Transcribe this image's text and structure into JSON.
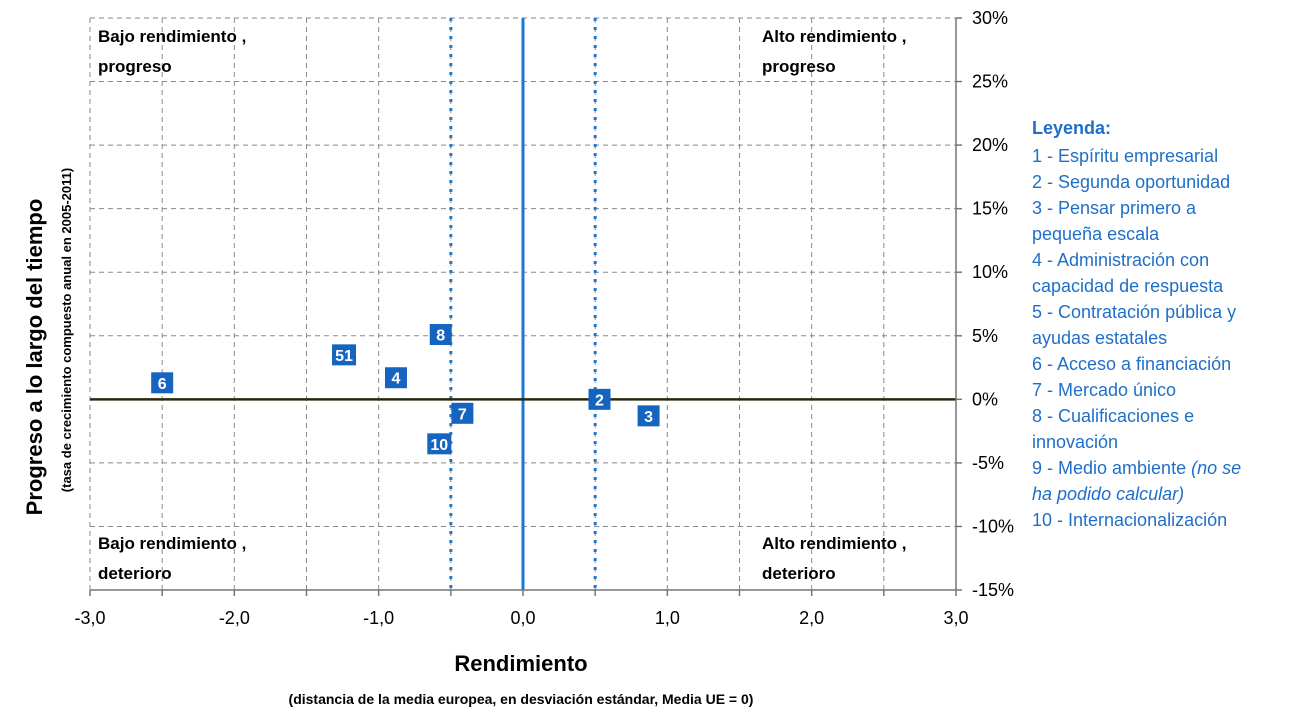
{
  "chart_data": {
    "type": "scatter",
    "xlabel": "Rendimiento",
    "xlabel_sub": "(distancia de la media europea,  en desviación estándar, Media UE = 0)",
    "ylabel": "Progreso  a lo largo del tiempo",
    "ylabel_sub": "(tasa de crecimiento compuesto anual en 2005-2011)",
    "xlim": [
      -3.0,
      3.0
    ],
    "ylim": [
      -0.15,
      0.3
    ],
    "x_ticks": [
      -3.0,
      -2.0,
      -1.0,
      0.0,
      1.0,
      2.0,
      3.0
    ],
    "x_tick_labels": [
      "-3,0",
      "-2,0",
      "-1,0",
      "0,0",
      "1,0",
      "2,0",
      "3,0"
    ],
    "y_ticks": [
      0.3,
      0.25,
      0.2,
      0.15,
      0.1,
      0.05,
      0.0,
      -0.05,
      -0.1,
      -0.15
    ],
    "y_tick_labels": [
      "30%",
      "25%",
      "20%",
      "15%",
      "10%",
      "5%",
      "0%",
      "-5%",
      "-10%",
      "-15%"
    ],
    "y_axis_side": "right",
    "grid": true,
    "reference_lines": {
      "vertical_solid_x": 0.0,
      "vertical_dotted_x": [
        -0.5,
        0.5
      ],
      "horizontal_solid_y": 0.0
    },
    "quadrant_labels": {
      "top_left": [
        "Bajo rendimiento ,",
        "progreso"
      ],
      "top_right": [
        "Alto rendimiento ,",
        "progreso"
      ],
      "bottom_left": [
        "Bajo rendimiento ,",
        "deterioro"
      ],
      "bottom_right": [
        "Alto rendimiento ,",
        "deterioro"
      ]
    },
    "points": [
      {
        "label": "6",
        "x": -2.5,
        "y": 0.013
      },
      {
        "label": "51",
        "x": -1.24,
        "y": 0.035
      },
      {
        "label": "4",
        "x": -0.88,
        "y": 0.017
      },
      {
        "label": "8",
        "x": -0.57,
        "y": 0.051
      },
      {
        "label": "7",
        "x": -0.42,
        "y": -0.011
      },
      {
        "label": "10",
        "x": -0.58,
        "y": -0.035
      },
      {
        "label": "2",
        "x": 0.53,
        "y": 0.0
      },
      {
        "label": "3",
        "x": 0.87,
        "y": -0.013
      }
    ],
    "legend": {
      "title": "Leyenda:",
      "items": [
        [
          "1 - Espíritu empresarial"
        ],
        [
          "2 - Segunda oportunidad"
        ],
        [
          "3 - Pensar primero a",
          "pequeña escala"
        ],
        [
          "4 - Administración con",
          "capacidad de respuesta"
        ],
        [
          "5 - Contratación pública y",
          "ayudas estatales"
        ],
        [
          "6 -  Acceso a financiación"
        ],
        [
          "7 - Mercado único"
        ],
        [
          "8 - Cualificaciones e",
          "innovación"
        ],
        [
          "9 - Medio ambiente ",
          "ha podido calcular)"
        ],
        [
          "10 - Internacionalización"
        ]
      ],
      "item9_note": "(no se"
    },
    "colors": {
      "marker": "#1565c0",
      "marker_text": "#ffffff",
      "reference_blue": "#1f77d4",
      "zero_line": "#2a2a10",
      "grid": "#8a8a8a",
      "legend_text": "#1f6fc9"
    }
  }
}
